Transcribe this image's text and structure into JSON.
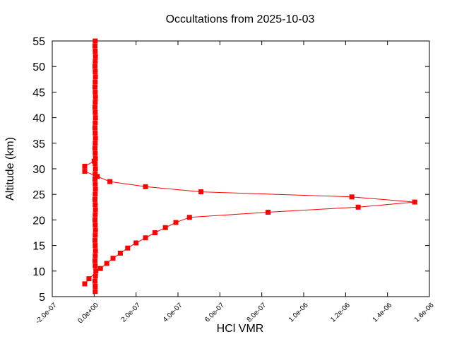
{
  "chart_data": {
    "type": "line",
    "title": "Occultations from 2025-10-03",
    "xlabel": "HCl VMR",
    "ylabel": "Altitude (km)",
    "xlim": [
      -2e-07,
      1.6e-06
    ],
    "ylim": [
      5,
      55
    ],
    "xticks": [
      -2e-07,
      0,
      2e-07,
      4e-07,
      6e-07,
      8e-07,
      1e-06,
      1.2e-06,
      1.4e-06,
      1.6e-06
    ],
    "xtick_labels": [
      "-2.0e-07",
      "0.0e+00",
      "2.0e-07",
      "4.0e-07",
      "6.0e-07",
      "8.0e-07",
      "1.0e-06",
      "1.2e-06",
      "1.4e-06",
      "1.6e-06"
    ],
    "yticks": [
      5,
      10,
      15,
      20,
      25,
      30,
      35,
      40,
      45,
      50,
      55
    ],
    "ytick_labels": [
      "5",
      "10",
      "15",
      "20",
      "25",
      "30",
      "35",
      "40",
      "45",
      "50",
      "55"
    ],
    "grid": false,
    "color": "#ff0000",
    "marker": "square",
    "series": [
      {
        "points": [
          [
            5e-09,
            6.0
          ],
          [
            5e-09,
            7.0
          ],
          [
            4e-09,
            8.0
          ],
          [
            6e-09,
            9.0
          ],
          [
            8e-09,
            10.0
          ],
          [
            5e-09,
            11.0
          ],
          [
            4e-09,
            12.0
          ],
          [
            5e-09,
            13.0
          ],
          [
            6e-09,
            14.0
          ],
          [
            5e-09,
            15.0
          ],
          [
            4e-09,
            16.0
          ],
          [
            5e-09,
            17.0
          ],
          [
            6e-09,
            18.0
          ],
          [
            5e-09,
            19.0
          ],
          [
            4e-09,
            20.0
          ],
          [
            5e-09,
            21.0
          ],
          [
            6e-09,
            22.0
          ],
          [
            5e-09,
            23.0
          ],
          [
            4e-09,
            24.0
          ],
          [
            5e-09,
            25.0
          ],
          [
            6e-09,
            26.0
          ],
          [
            5e-09,
            27.0
          ],
          [
            4e-09,
            28.0
          ],
          [
            5e-09,
            29.0
          ],
          [
            6e-09,
            30.0
          ],
          [
            5e-09,
            31.0
          ],
          [
            6e-09,
            32.0
          ],
          [
            5e-09,
            33.0
          ],
          [
            4e-09,
            34.0
          ],
          [
            5e-09,
            35.0
          ],
          [
            6e-09,
            36.0
          ],
          [
            5e-09,
            37.0
          ],
          [
            4e-09,
            38.0
          ],
          [
            5e-09,
            39.0
          ],
          [
            6e-09,
            40.0
          ],
          [
            5e-09,
            41.0
          ],
          [
            4e-09,
            42.0
          ],
          [
            5e-09,
            43.0
          ],
          [
            6e-09,
            44.0
          ],
          [
            5e-09,
            45.0
          ],
          [
            4e-09,
            46.0
          ],
          [
            5e-09,
            47.0
          ],
          [
            6e-09,
            48.0
          ],
          [
            5e-09,
            49.0
          ],
          [
            4e-09,
            50.0
          ],
          [
            5e-09,
            51.0
          ],
          [
            6e-09,
            52.0
          ],
          [
            5e-09,
            53.0
          ],
          [
            4e-09,
            54.0
          ],
          [
            5e-09,
            55.0
          ]
        ]
      },
      {
        "points": [
          [
            -4.5e-08,
            7.5
          ],
          [
            -2.5e-08,
            8.5
          ],
          [
            3e-08,
            10.5
          ],
          [
            6e-08,
            11.5
          ],
          [
            9e-08,
            12.5
          ],
          [
            1.25e-07,
            13.5
          ],
          [
            1.6e-07,
            14.5
          ],
          [
            2e-07,
            15.5
          ],
          [
            2.45e-07,
            16.5
          ],
          [
            2.9e-07,
            17.5
          ],
          [
            3.4e-07,
            18.5
          ],
          [
            3.9e-07,
            19.5
          ],
          [
            4.55e-07,
            20.5
          ],
          [
            8.3e-07,
            21.5
          ],
          [
            1.26e-06,
            22.5
          ],
          [
            1.53e-06,
            23.5
          ],
          [
            1.23e-06,
            24.5
          ],
          [
            5.1e-07,
            25.5
          ],
          [
            2.45e-07,
            26.5
          ],
          [
            7.5e-08,
            27.5
          ],
          [
            1.5e-08,
            28.5
          ],
          [
            -4.5e-08,
            29.5
          ],
          [
            -4.5e-08,
            30.5
          ],
          [
            0,
            31.5
          ]
        ]
      }
    ]
  }
}
